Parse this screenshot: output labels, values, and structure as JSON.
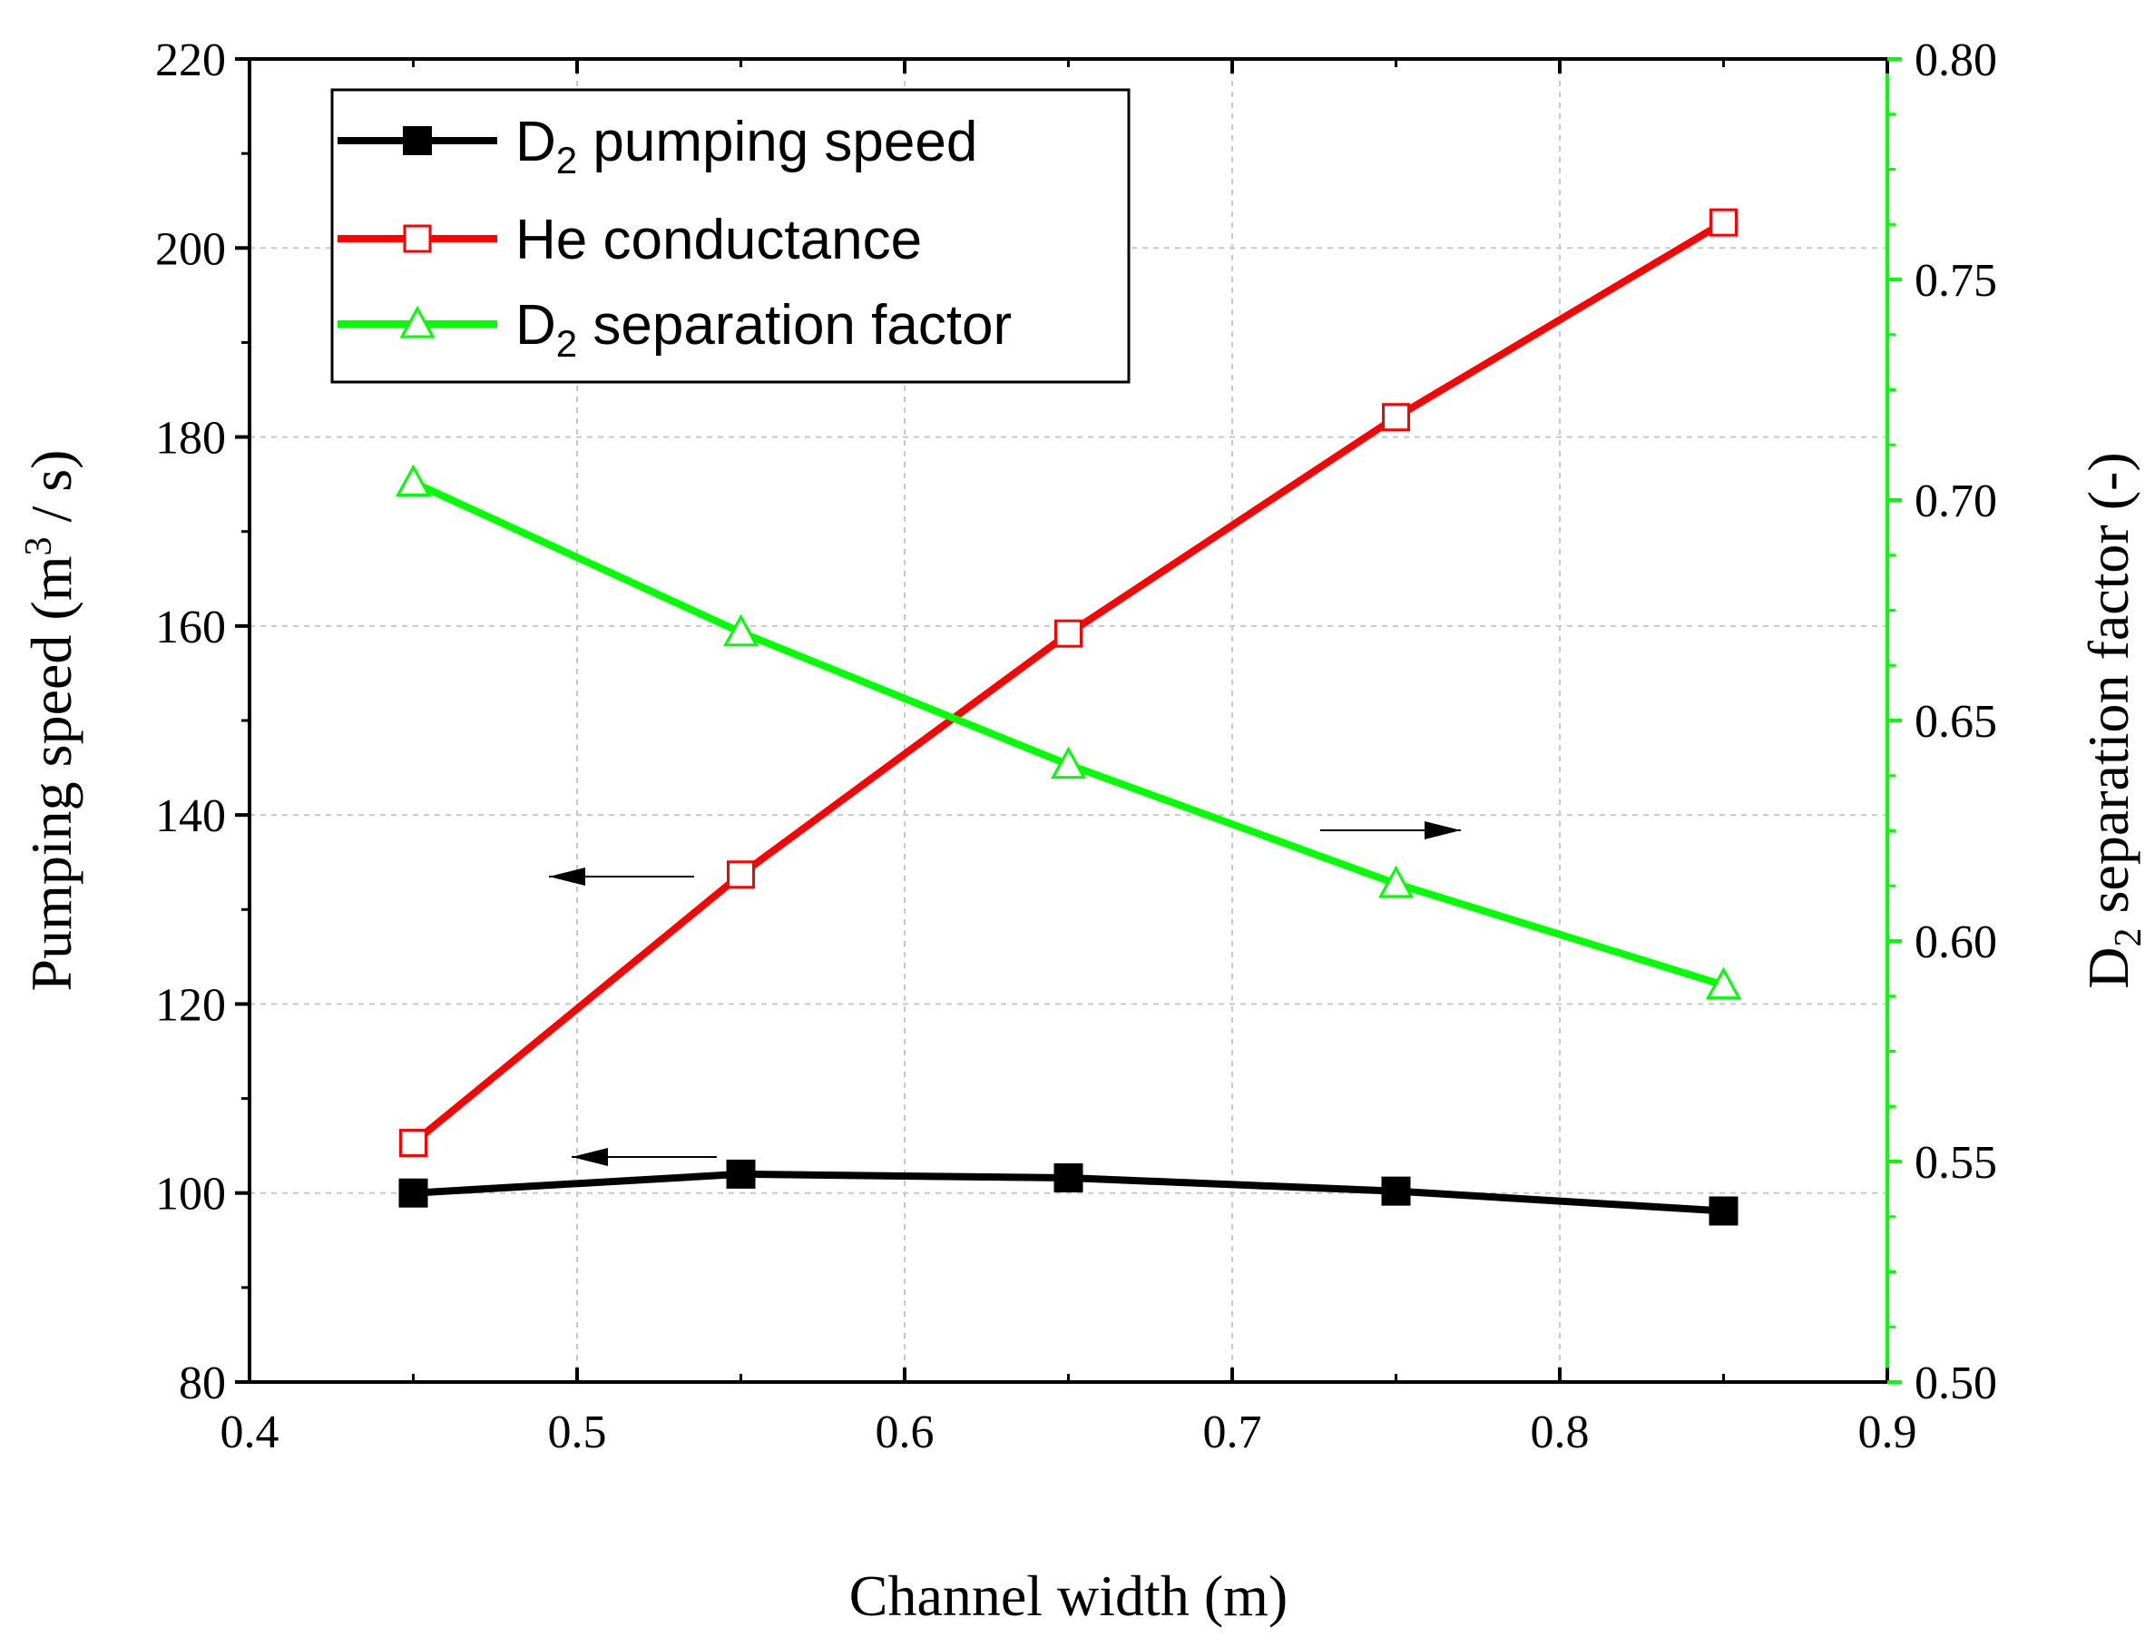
{
  "chart_data": {
    "type": "line",
    "xlabel": "Channel width (m)",
    "ylabel_parts": [
      "Pumping speed (m",
      "3",
      " / s)"
    ],
    "y2label_parts": [
      "D",
      "2",
      " separation factor (-)"
    ],
    "xlim": [
      0.4,
      0.9
    ],
    "ylim": [
      80,
      220
    ],
    "y2lim": [
      0.5,
      0.8
    ],
    "x_ticks": [
      "0.4",
      "0.5",
      "0.6",
      "0.7",
      "0.8",
      "0.9"
    ],
    "y_ticks": [
      "80",
      "100",
      "120",
      "140",
      "160",
      "180",
      "200",
      "220"
    ],
    "y2_ticks": [
      "0.50",
      "0.55",
      "0.60",
      "0.65",
      "0.70",
      "0.75",
      "0.80"
    ],
    "grid": true,
    "legend_position": "top-left",
    "series": [
      {
        "name": "D2 pumping speed",
        "legend_parts": [
          "D",
          "2",
          " pumping speed"
        ],
        "axis": "left",
        "color": "#000000",
        "marker": "filled-square",
        "x": [
          0.45,
          0.55,
          0.65,
          0.75,
          0.85
        ],
        "values": [
          100.0,
          102.0,
          101.6,
          100.2,
          98.1
        ]
      },
      {
        "name": "He conductance",
        "legend_parts": [
          "He conductance",
          "",
          ""
        ],
        "axis": "left",
        "color": "#ff0000",
        "marker": "open-square",
        "x": [
          0.45,
          0.55,
          0.65,
          0.75,
          0.85
        ],
        "values": [
          105.3,
          133.7,
          159.2,
          182.1,
          202.7
        ]
      },
      {
        "name": "D2 separation factor",
        "legend_parts": [
          "D",
          "2",
          " separation factor"
        ],
        "axis": "right",
        "color": "#00ff00",
        "marker": "open-triangle",
        "x": [
          0.45,
          0.55,
          0.65,
          0.75,
          0.85
        ],
        "values": [
          0.704,
          0.67,
          0.64,
          0.613,
          0.59
        ]
      }
    ],
    "annotations": [
      {
        "type": "arrow",
        "direction": "left",
        "points_to_axis": "left"
      },
      {
        "type": "arrow",
        "direction": "left",
        "points_to_axis": "left"
      },
      {
        "type": "arrow",
        "direction": "right",
        "points_to_axis": "right"
      }
    ],
    "colors": {
      "right_axis": "#00ff00"
    }
  }
}
